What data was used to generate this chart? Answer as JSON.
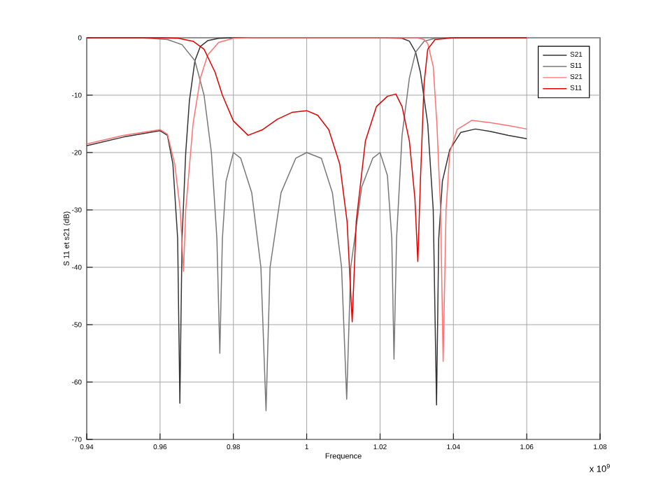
{
  "chart_data": {
    "type": "line",
    "xlabel": "Frequence",
    "ylabel": "S 11 et s21 (dB)",
    "annotations": [
      "x 10$^{9}$"
    ],
    "xlim": [
      0.94,
      1.08
    ],
    "ylim": [
      -70,
      0
    ],
    "xticks": [
      0.94,
      0.96,
      0.98,
      1,
      1.02,
      1.04,
      1.06,
      1.08
    ],
    "yticks": [
      -70,
      -60,
      -50,
      -40,
      -30,
      -20,
      -10,
      0
    ],
    "grid": true,
    "legend": "top right",
    "line_style": "solid",
    "marker": "none",
    "series": [
      {
        "name": "S21",
        "color": "#333333",
        "x": [
          0.94,
          0.95,
          0.96,
          0.962,
          0.9635,
          0.9648,
          0.9654,
          0.966,
          0.967,
          0.968,
          0.9695,
          0.971,
          0.973,
          0.976,
          0.98,
          1.0,
          1.02,
          1.026,
          1.028,
          1.0297,
          1.031,
          1.033,
          1.0345,
          1.0354,
          1.036,
          1.037,
          1.039,
          1.042,
          1.046,
          1.05,
          1.055,
          1.06
        ],
        "values": [
          -18.8,
          -17.3,
          -16.2,
          -17,
          -22,
          -35,
          -63.7,
          -35,
          -20,
          -11,
          -4,
          -1.5,
          -0.5,
          -0.1,
          0,
          0,
          0,
          -0.1,
          -0.6,
          -2.5,
          -6,
          -15,
          -30,
          -64,
          -35,
          -25,
          -19.5,
          -16.5,
          -15.9,
          -16.3,
          -17,
          -17.6
        ]
      },
      {
        "name": "S11",
        "color": "#777777",
        "x": [
          0.94,
          0.955,
          0.962,
          0.966,
          0.9695,
          0.972,
          0.974,
          0.9755,
          0.9763,
          0.977,
          0.978,
          0.98,
          0.982,
          0.985,
          0.9875,
          0.9889,
          0.99,
          0.993,
          0.997,
          1.0,
          1.004,
          1.007,
          1.0095,
          1.0109,
          1.012,
          1.015,
          1.018,
          1.02,
          1.022,
          1.0232,
          1.0238,
          1.0245,
          1.026,
          1.028,
          1.0297,
          1.032,
          1.035,
          1.04,
          1.06
        ],
        "values": [
          0,
          0,
          -0.3,
          -1.2,
          -4,
          -10,
          -20,
          -35,
          -55,
          -35,
          -25,
          -20,
          -21,
          -27,
          -40,
          -65,
          -40,
          -27,
          -21,
          -20,
          -21,
          -27,
          -40,
          -63,
          -40,
          -26,
          -21,
          -20,
          -24,
          -35,
          -56,
          -35,
          -17,
          -7,
          -2.5,
          -0.6,
          -0.1,
          0,
          0
        ]
      },
      {
        "name": "S21",
        "color": "#ff7070",
        "x": [
          0.94,
          0.95,
          0.96,
          0.962,
          0.964,
          0.9655,
          0.9664,
          0.967,
          0.969,
          0.971,
          0.973,
          0.976,
          0.98,
          0.985,
          1.03,
          1.032,
          1.033,
          1.0345,
          1.0355,
          1.0365,
          1.0372,
          1.038,
          1.039,
          1.041,
          1.045,
          1.05,
          1.055,
          1.06
        ],
        "values": [
          -18.5,
          -17,
          -16,
          -16.8,
          -22,
          -30,
          -40.7,
          -30,
          -15,
          -7,
          -3,
          -0.8,
          -0.1,
          0,
          0,
          -0.3,
          -1,
          -5,
          -15,
          -30,
          -56.4,
          -30,
          -20,
          -16,
          -14.4,
          -14.8,
          -15.3,
          -15.9
        ]
      },
      {
        "name": "S11",
        "color": "#e00000",
        "x": [
          0.94,
          0.96,
          0.965,
          0.969,
          0.972,
          0.975,
          0.977,
          0.98,
          0.984,
          0.988,
          0.992,
          0.996,
          1.0,
          1.003,
          1.006,
          1.009,
          1.011,
          1.0124,
          1.0135,
          1.016,
          1.019,
          1.022,
          1.0243,
          1.026,
          1.028,
          1.0295,
          1.0303,
          1.031,
          1.032,
          1.033,
          1.035,
          1.04,
          1.06
        ],
        "values": [
          0,
          0,
          -0.1,
          -0.6,
          -2,
          -6,
          -10,
          -14.5,
          -17,
          -16,
          -14.2,
          -13,
          -12.7,
          -13.5,
          -16,
          -22,
          -32,
          -49.5,
          -32,
          -18,
          -12,
          -10.2,
          -9.8,
          -12,
          -18,
          -28,
          -39,
          -25,
          -8,
          -2,
          -0.3,
          0,
          0
        ]
      }
    ]
  }
}
